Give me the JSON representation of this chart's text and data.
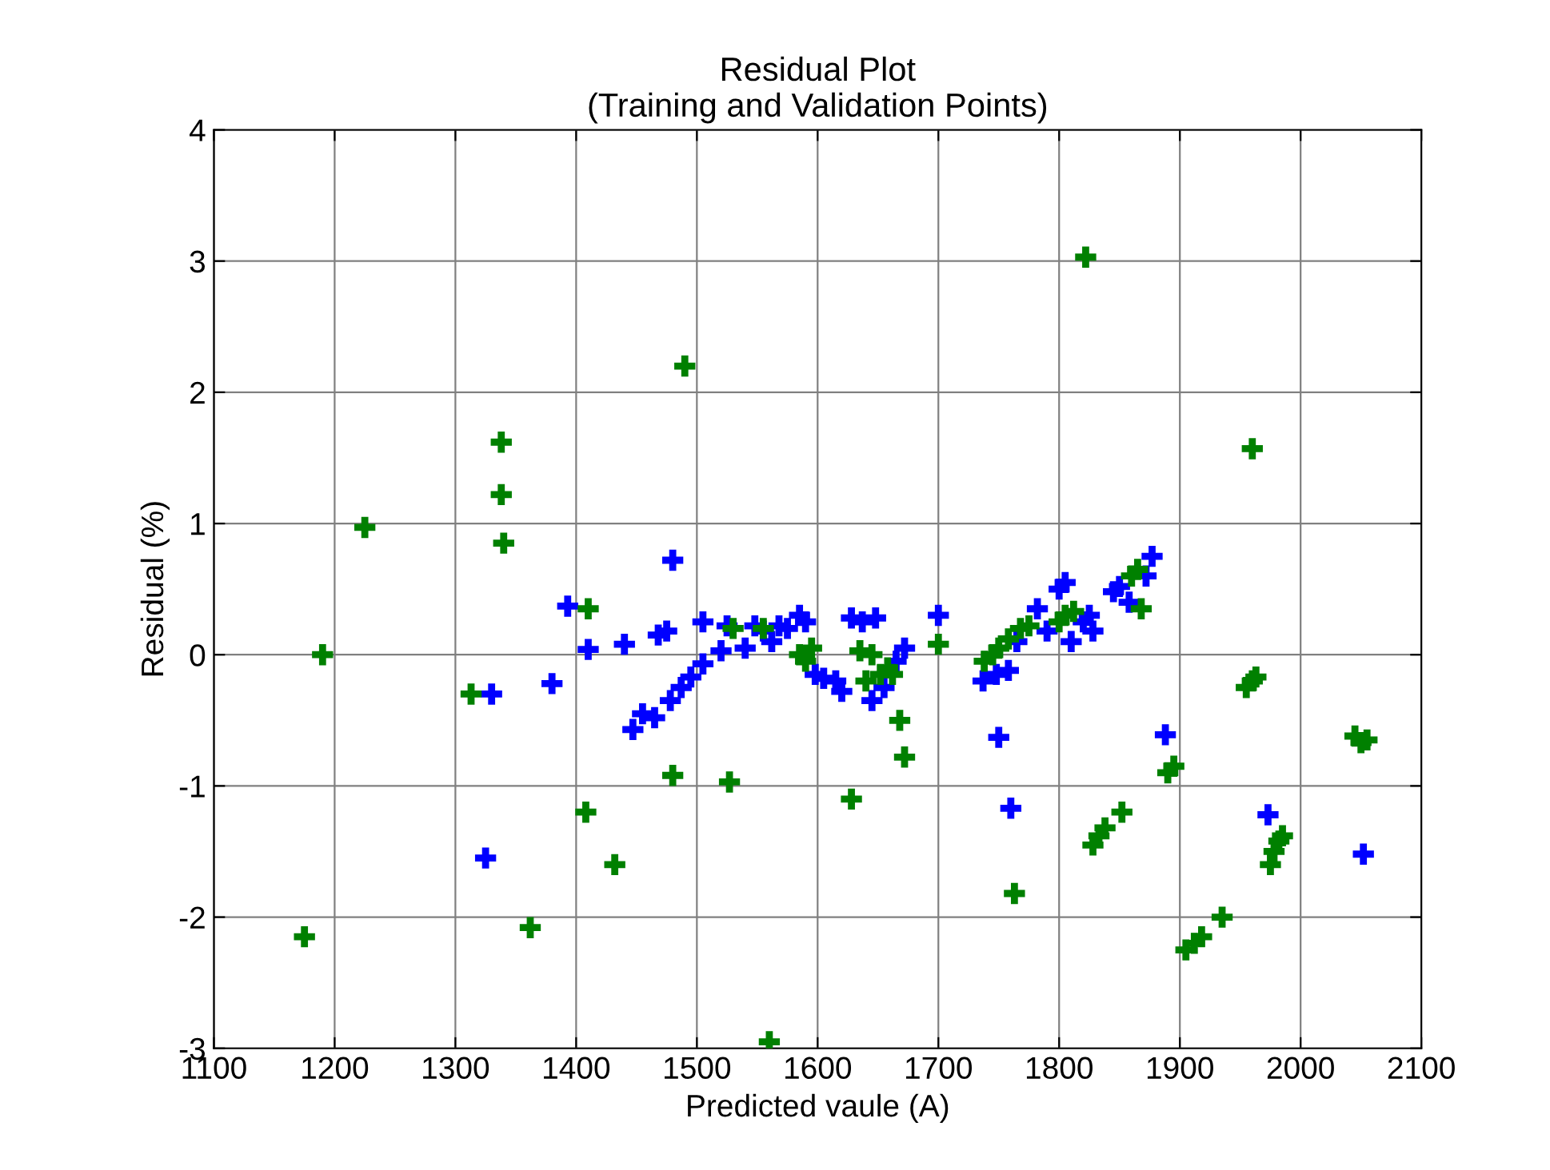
{
  "chart_data": {
    "type": "scatter",
    "title": "Residual Plot\n(Training and Validation Points)",
    "xlabel": "Predicted vaule (A)",
    "ylabel": "Residual (%)",
    "xlim": [
      1100,
      2100
    ],
    "xticks": [
      1100,
      1200,
      1300,
      1400,
      1500,
      1600,
      1700,
      1800,
      1900,
      2000,
      2100
    ],
    "ylim": [
      -3,
      4
    ],
    "yticks": [
      -3,
      -2,
      -1,
      0,
      1,
      2,
      3,
      4
    ],
    "grid": true,
    "marker": "cross",
    "series": [
      {
        "color": "#0000ff",
        "x": [
          1330,
          1325,
          1380,
          1393,
          1410,
          1440,
          1447,
          1455,
          1465,
          1468,
          1475,
          1480,
          1478,
          1487,
          1495,
          1505,
          1505,
          1520,
          1525,
          1540,
          1548,
          1555,
          1562,
          1568,
          1575,
          1585,
          1590,
          1598,
          1605,
          1615,
          1620,
          1628,
          1637,
          1645,
          1648,
          1655,
          1665,
          1672,
          1700,
          1737,
          1748,
          1750,
          1758,
          1760,
          1765,
          1782,
          1790,
          1800,
          1805,
          1810,
          1820,
          1825,
          1828,
          1845,
          1850,
          1858,
          1872,
          1877,
          1888,
          1973,
          2052
        ],
        "values": [
          -0.3,
          -1.55,
          -0.22,
          0.37,
          0.04,
          0.08,
          -0.57,
          -0.45,
          -0.48,
          0.15,
          0.18,
          0.72,
          -0.35,
          -0.25,
          -0.17,
          -0.07,
          0.25,
          0.03,
          0.22,
          0.05,
          0.22,
          0.18,
          0.1,
          0.22,
          0.2,
          0.3,
          0.25,
          -0.15,
          -0.18,
          -0.2,
          -0.28,
          0.28,
          0.25,
          -0.35,
          0.28,
          -0.25,
          -0.05,
          0.05,
          0.3,
          -0.2,
          -0.15,
          -0.63,
          -0.12,
          -1.17,
          0.1,
          0.35,
          0.18,
          0.5,
          0.55,
          0.1,
          0.25,
          0.3,
          0.18,
          0.48,
          0.52,
          0.4,
          0.6,
          0.75,
          -0.61,
          -1.22,
          -1.52
        ]
      },
      {
        "color": "#008000",
        "x": [
          1175,
          1190,
          1225,
          1313,
          1338,
          1338,
          1340,
          1362,
          1408,
          1410,
          1432,
          1480,
          1490,
          1527,
          1530,
          1555,
          1560,
          1585,
          1590,
          1595,
          1628,
          1635,
          1640,
          1645,
          1652,
          1658,
          1662,
          1668,
          1672,
          1700,
          1738,
          1745,
          1750,
          1758,
          1763,
          1768,
          1775,
          1800,
          1805,
          1812,
          1822,
          1828,
          1833,
          1838,
          1852,
          1860,
          1865,
          1868,
          1890,
          1895,
          1905,
          1912,
          1918,
          1935,
          1955,
          1960,
          1963,
          1960,
          1975,
          1978,
          1982,
          1985,
          2045,
          2050,
          2055
        ],
        "values": [
          -2.15,
          0,
          0.97,
          -0.3,
          1.62,
          1.22,
          0.85,
          -2.08,
          -1.2,
          0.35,
          -1.6,
          -0.92,
          2.2,
          -0.97,
          0.2,
          0.2,
          -2.95,
          0,
          -0.05,
          0.05,
          -1.1,
          0.03,
          -0.2,
          0,
          -0.15,
          -0.1,
          -0.15,
          -0.5,
          -0.78,
          0.08,
          -0.05,
          0,
          0.05,
          0.12,
          -1.82,
          0.2,
          0.22,
          0.25,
          0.3,
          0.33,
          3.03,
          -1.45,
          -1.38,
          -1.32,
          -1.2,
          0.6,
          0.65,
          0.35,
          -0.9,
          -0.85,
          -2.25,
          -2.2,
          -2.15,
          -2,
          -0.25,
          -0.2,
          -0.17,
          1.57,
          -1.6,
          -1.5,
          -1.42,
          -1.38,
          -0.62,
          -0.67,
          -0.65
        ]
      }
    ]
  }
}
